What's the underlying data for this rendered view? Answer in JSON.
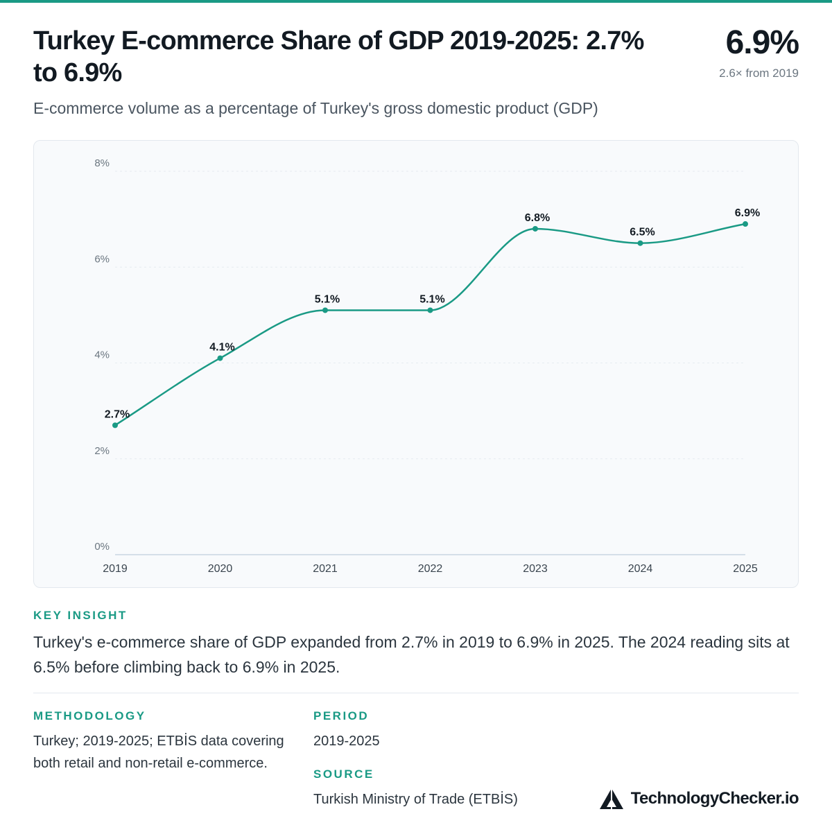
{
  "header": {
    "title": "Turkey E-commerce Share of GDP 2019-2025: 2.7% to 6.9%",
    "kpi_value": "6.9%",
    "kpi_note": "2.6× from 2019",
    "subtitle": "E-commerce volume as a percentage of Turkey's gross domestic product (GDP)"
  },
  "colors": {
    "accent": "#1a9a85",
    "line": "#1a9a85",
    "card_bg": "#f8fafc"
  },
  "chart_data": {
    "type": "line",
    "categories": [
      "2019",
      "2020",
      "2021",
      "2022",
      "2023",
      "2024",
      "2025"
    ],
    "values": [
      2.7,
      4.1,
      5.1,
      5.1,
      6.8,
      6.5,
      6.9
    ],
    "data_labels": [
      "2.7%",
      "4.1%",
      "5.1%",
      "5.1%",
      "6.8%",
      "6.5%",
      "6.9%"
    ],
    "y_ticks": [
      0,
      2,
      4,
      6,
      8
    ],
    "y_tick_labels": [
      "0%",
      "2%",
      "4%",
      "6%",
      "8%"
    ],
    "ylim": [
      0,
      8
    ],
    "grid": true,
    "legend": "none",
    "title": "",
    "xlabel": "",
    "ylabel": ""
  },
  "insight": {
    "label": "KEY INSIGHT",
    "text": "Turkey's e-commerce share of GDP expanded from 2.7% in 2019 to 6.9% in 2025. The 2024 reading sits at 6.5% before climbing back to 6.9% in 2025."
  },
  "methodology": {
    "label": "METHODOLOGY",
    "text": "Turkey; 2019-2025; ETBİS data covering both retail and non-retail e-commerce."
  },
  "period": {
    "label": "PERIOD",
    "text": "2019-2025"
  },
  "source": {
    "label": "SOURCE",
    "text": "Turkish Ministry of Trade (ETBİS)"
  },
  "brand": {
    "name": "TechnologyChecker.io",
    "icon": "triangle-logo-icon"
  }
}
